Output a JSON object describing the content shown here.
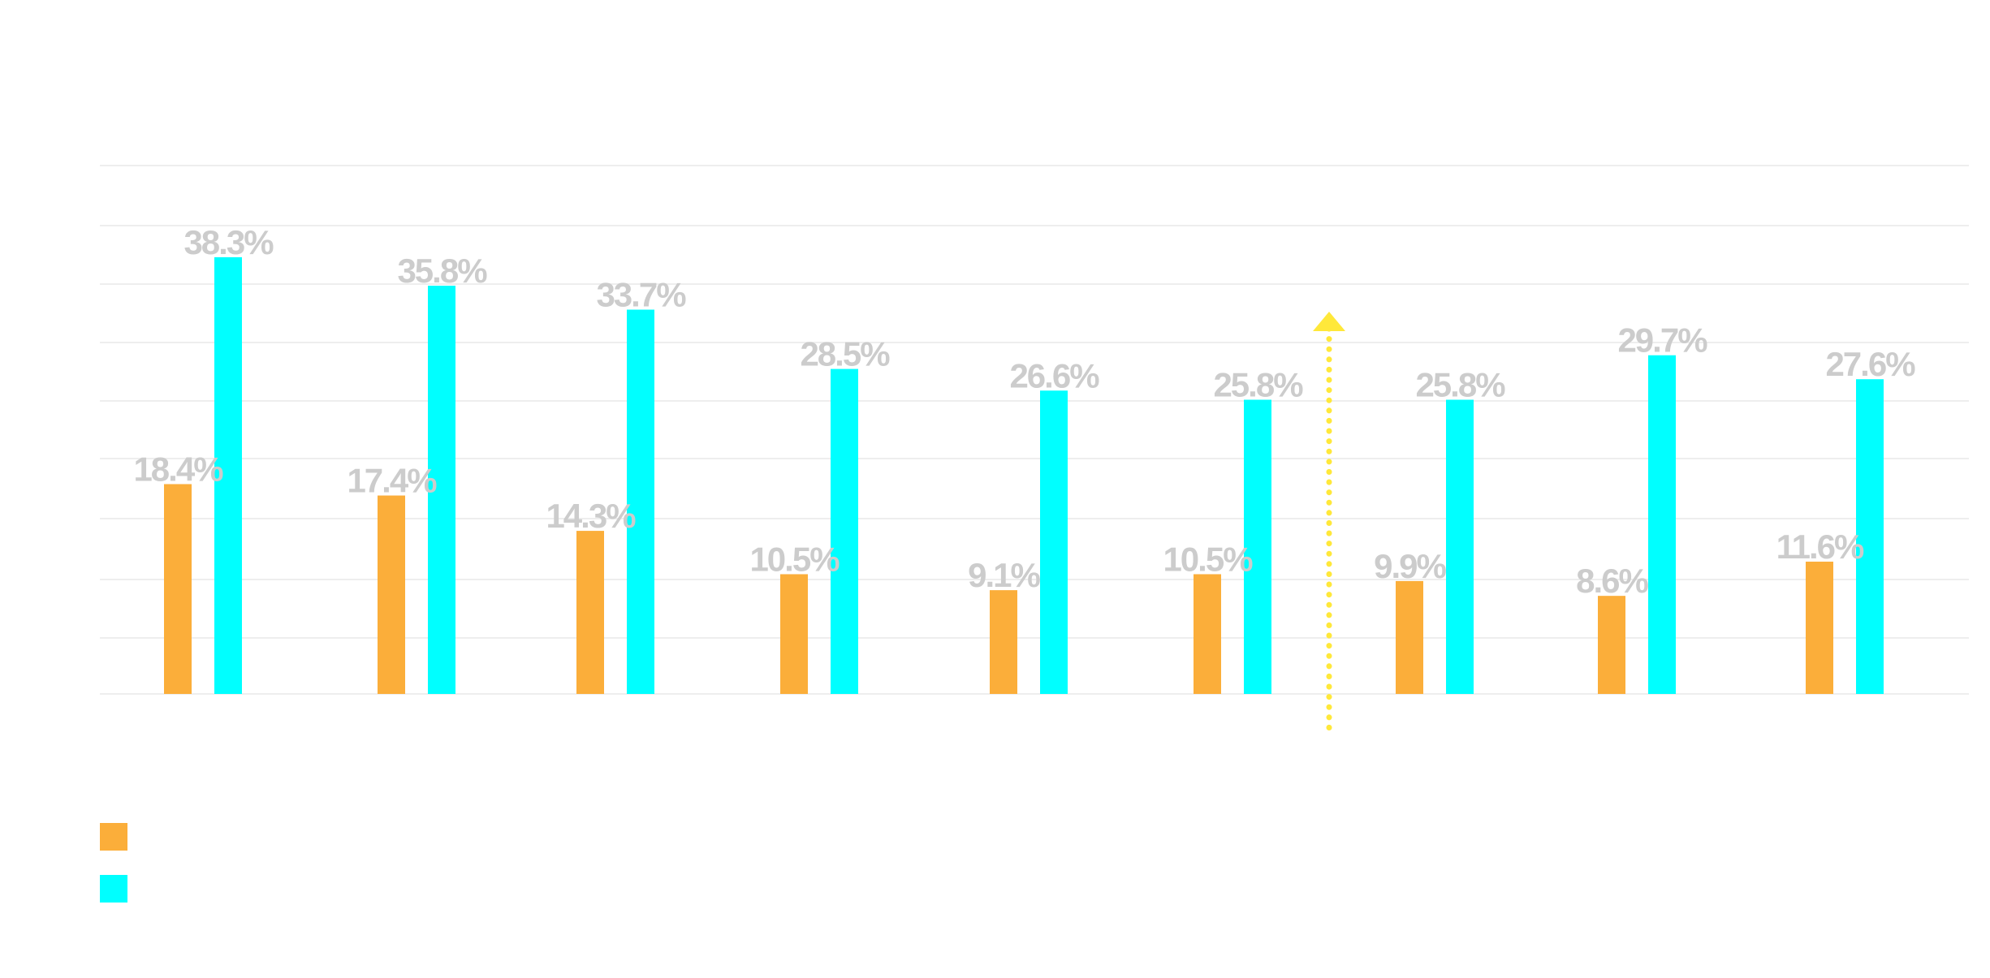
{
  "chart_data": {
    "type": "bar",
    "title": "",
    "xlabel": "",
    "ylabel": "",
    "ylim": [
      0,
      45
    ],
    "grid": true,
    "legend_position": "bottom-left",
    "categories": [
      "",
      "",
      "",
      "",
      "",
      "",
      "",
      "",
      ""
    ],
    "series": [
      {
        "color": "#FBAE3A",
        "values": [
          18.4,
          17.4,
          14.3,
          10.5,
          9.1,
          10.5,
          9.9,
          8.6,
          11.6
        ],
        "labels": [
          "18.4%",
          "17.4%",
          "14.3%",
          "10.5%",
          "9.1%",
          "10.5%",
          "9.9%",
          "8.6%",
          "11.6%"
        ]
      },
      {
        "color": "#00FFFF",
        "values": [
          38.3,
          35.8,
          33.7,
          28.5,
          26.6,
          25.8,
          25.8,
          29.7,
          27.6
        ],
        "labels": [
          "38.3%",
          "35.8%",
          "33.7%",
          "28.5%",
          "26.6%",
          "25.8%",
          "25.8%",
          "29.7%",
          "27.6%"
        ]
      }
    ],
    "marker": {
      "type": "dotted-arrow",
      "between_categories": [
        5,
        6
      ],
      "color": "#FFE83A"
    },
    "label_color": "#CCCCCC",
    "grid_color": "#EEEEEE"
  }
}
